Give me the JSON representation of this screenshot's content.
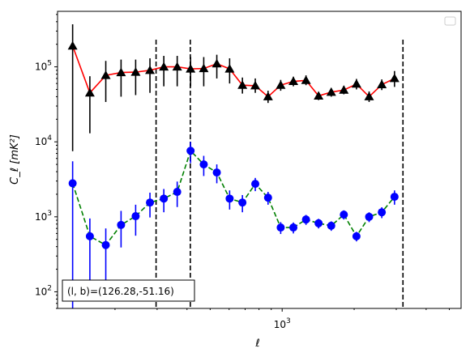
{
  "chart_data": {
    "type": "line",
    "xlabel": "ℓ",
    "ylabel": "C_ℓ  [mK²]",
    "xscale": "log",
    "yscale": "log",
    "xlim": [
      115,
      5600
    ],
    "ylim": [
      60,
      550000
    ],
    "x_tick_labels": [
      {
        "value": 1000,
        "label": "10",
        "exp": "3"
      }
    ],
    "y_tick_labels": [
      {
        "value": 100,
        "label": "10",
        "exp": "2"
      },
      {
        "value": 1000,
        "label": "10",
        "exp": "3"
      },
      {
        "value": 10000,
        "label": "10",
        "exp": "4"
      },
      {
        "value": 100000,
        "label": "10",
        "exp": "5"
      }
    ],
    "grid": false,
    "legend": {
      "placement": "top-right",
      "entries": []
    },
    "annotation": "(l, b)=(126.28,-51.16)",
    "vertical_lines": [
      297,
      413,
      3200
    ],
    "series": [
      {
        "color": "#ff0000",
        "marker_color": "#000000",
        "errbar_color": "#000000",
        "marker": "triangle",
        "linestyle": "solid",
        "points": [
          {
            "x": 133,
            "y": 190000,
            "lo": 7500,
            "hi": 370000
          },
          {
            "x": 157,
            "y": 45000,
            "lo": 13000,
            "hi": 75000
          },
          {
            "x": 183,
            "y": 77000,
            "lo": 34000,
            "hi": 120000
          },
          {
            "x": 212,
            "y": 84000,
            "lo": 40000,
            "hi": 125000
          },
          {
            "x": 244,
            "y": 85000,
            "lo": 42000,
            "hi": 125000
          },
          {
            "x": 280,
            "y": 90000,
            "lo": 45000,
            "hi": 130000
          },
          {
            "x": 320,
            "y": 100000,
            "lo": 55000,
            "hi": 140000
          },
          {
            "x": 364,
            "y": 100000,
            "lo": 55000,
            "hi": 140000
          },
          {
            "x": 414,
            "y": 94000,
            "lo": 55000,
            "hi": 135000
          },
          {
            "x": 470,
            "y": 95000,
            "lo": 55000,
            "hi": 135000
          },
          {
            "x": 533,
            "y": 110000,
            "lo": 70000,
            "hi": 145000
          },
          {
            "x": 603,
            "y": 94000,
            "lo": 60000,
            "hi": 130000
          },
          {
            "x": 682,
            "y": 57000,
            "lo": 44000,
            "hi": 72000
          },
          {
            "x": 772,
            "y": 56000,
            "lo": 45000,
            "hi": 70000
          },
          {
            "x": 873,
            "y": 40000,
            "lo": 33000,
            "hi": 48000
          },
          {
            "x": 986,
            "y": 57000,
            "lo": 48000,
            "hi": 67000
          },
          {
            "x": 1114,
            "y": 64000,
            "lo": 55000,
            "hi": 74000
          },
          {
            "x": 1258,
            "y": 66000,
            "lo": 57000,
            "hi": 77000
          },
          {
            "x": 1420,
            "y": 41000,
            "lo": 36000,
            "hi": 46000
          },
          {
            "x": 1604,
            "y": 46000,
            "lo": 40000,
            "hi": 52000
          },
          {
            "x": 1811,
            "y": 49000,
            "lo": 43000,
            "hi": 56000
          },
          {
            "x": 2045,
            "y": 59000,
            "lo": 50000,
            "hi": 69000
          },
          {
            "x": 2310,
            "y": 40000,
            "lo": 34000,
            "hi": 47000
          },
          {
            "x": 2610,
            "y": 58000,
            "lo": 49000,
            "hi": 68000
          },
          {
            "x": 2950,
            "y": 70000,
            "lo": 54000,
            "hi": 88000
          }
        ]
      },
      {
        "color": "#008000",
        "marker_color": "#0000ff",
        "errbar_color": "#0000ff",
        "marker": "circle",
        "linestyle": "dashed",
        "points": [
          {
            "x": 133,
            "y": 2800,
            "lo": 60,
            "hi": 5500
          },
          {
            "x": 157,
            "y": 550,
            "lo": 130,
            "hi": 950
          },
          {
            "x": 183,
            "y": 420,
            "lo": 140,
            "hi": 700
          },
          {
            "x": 212,
            "y": 780,
            "lo": 390,
            "hi": 1200
          },
          {
            "x": 244,
            "y": 1020,
            "lo": 560,
            "hi": 1450
          },
          {
            "x": 280,
            "y": 1550,
            "lo": 980,
            "hi": 2100
          },
          {
            "x": 320,
            "y": 1750,
            "lo": 1150,
            "hi": 2350
          },
          {
            "x": 364,
            "y": 2150,
            "lo": 1350,
            "hi": 2950
          },
          {
            "x": 414,
            "y": 7600,
            "lo": 5200,
            "hi": 10000
          },
          {
            "x": 470,
            "y": 5000,
            "lo": 3500,
            "hi": 6500
          },
          {
            "x": 533,
            "y": 3900,
            "lo": 2800,
            "hi": 5000
          },
          {
            "x": 603,
            "y": 1750,
            "lo": 1250,
            "hi": 2250
          },
          {
            "x": 682,
            "y": 1550,
            "lo": 1150,
            "hi": 1950
          },
          {
            "x": 772,
            "y": 2750,
            "lo": 2200,
            "hi": 3300
          },
          {
            "x": 873,
            "y": 1800,
            "lo": 1450,
            "hi": 2150
          },
          {
            "x": 986,
            "y": 720,
            "lo": 590,
            "hi": 850
          },
          {
            "x": 1114,
            "y": 720,
            "lo": 600,
            "hi": 840
          },
          {
            "x": 1258,
            "y": 920,
            "lo": 780,
            "hi": 1060
          },
          {
            "x": 1420,
            "y": 820,
            "lo": 700,
            "hi": 940
          },
          {
            "x": 1604,
            "y": 760,
            "lo": 650,
            "hi": 870
          },
          {
            "x": 1811,
            "y": 1070,
            "lo": 920,
            "hi": 1220
          },
          {
            "x": 2045,
            "y": 550,
            "lo": 470,
            "hi": 630
          },
          {
            "x": 2310,
            "y": 1000,
            "lo": 850,
            "hi": 1150
          },
          {
            "x": 2610,
            "y": 1150,
            "lo": 960,
            "hi": 1340
          },
          {
            "x": 2950,
            "y": 1850,
            "lo": 1450,
            "hi": 2250
          }
        ]
      }
    ]
  }
}
